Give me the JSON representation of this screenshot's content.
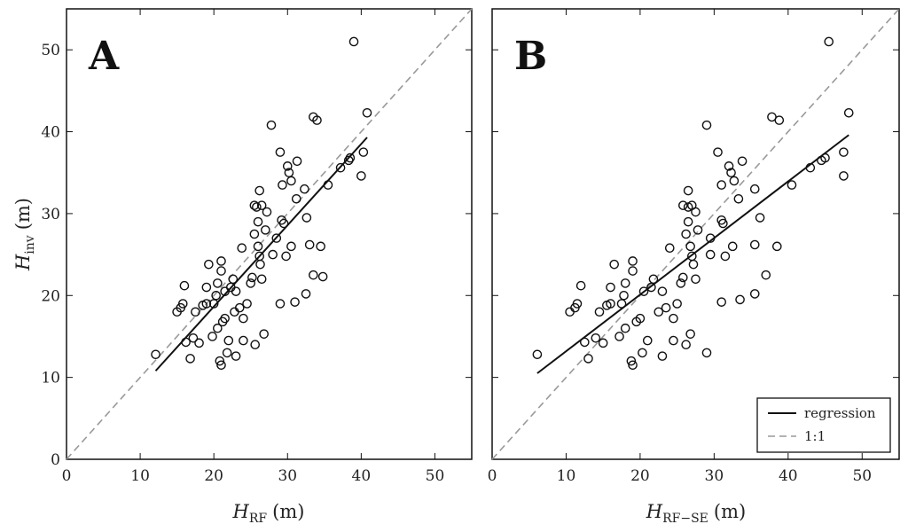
{
  "chart_data": [
    {
      "type": "scatter",
      "panel_label": "A",
      "ylabel": {
        "main": "H",
        "sub": "inv",
        "unit": "(m)"
      },
      "xlabel": {
        "main": "H",
        "sub": "RF",
        "unit": "(m)"
      },
      "xlim": [
        0,
        55
      ],
      "ylim": [
        0,
        55
      ],
      "xticks": [
        0,
        10,
        20,
        30,
        40,
        50
      ],
      "yticks": [
        0,
        10,
        20,
        30,
        40,
        50
      ],
      "grid": false,
      "series": [
        {
          "name": "observations",
          "points": [
            [
              12.1,
              12.8
            ],
            [
              15.0,
              18.0
            ],
            [
              15.5,
              18.5
            ],
            [
              15.8,
              19.0
            ],
            [
              16.0,
              21.2
            ],
            [
              16.2,
              14.3
            ],
            [
              16.8,
              12.3
            ],
            [
              17.2,
              14.8
            ],
            [
              17.5,
              18.0
            ],
            [
              18.0,
              14.2
            ],
            [
              18.5,
              18.8
            ],
            [
              19.0,
              19.0
            ],
            [
              19.0,
              21.0
            ],
            [
              19.3,
              23.8
            ],
            [
              19.8,
              15.0
            ],
            [
              20.0,
              19.0
            ],
            [
              20.3,
              20.0
            ],
            [
              20.5,
              16.0
            ],
            [
              20.5,
              21.5
            ],
            [
              20.8,
              12.0
            ],
            [
              21.0,
              11.5
            ],
            [
              21.0,
              24.2
            ],
            [
              21.0,
              23.0
            ],
            [
              21.2,
              16.8
            ],
            [
              21.5,
              17.2
            ],
            [
              21.8,
              13.0
            ],
            [
              21.5,
              20.5
            ],
            [
              22.0,
              14.5
            ],
            [
              22.3,
              21.0
            ],
            [
              22.6,
              22.0
            ],
            [
              22.8,
              18.0
            ],
            [
              23.0,
              12.6
            ],
            [
              23.0,
              20.5
            ],
            [
              23.5,
              18.5
            ],
            [
              23.8,
              25.8
            ],
            [
              24.0,
              14.5
            ],
            [
              24.0,
              17.2
            ],
            [
              24.5,
              19.0
            ],
            [
              25.0,
              21.5
            ],
            [
              25.2,
              22.2
            ],
            [
              25.5,
              31.0
            ],
            [
              25.5,
              27.5
            ],
            [
              25.6,
              14.0
            ],
            [
              25.8,
              30.8
            ],
            [
              26.0,
              29.0
            ],
            [
              26.0,
              26.0
            ],
            [
              26.2,
              24.8
            ],
            [
              26.2,
              32.8
            ],
            [
              26.3,
              23.8
            ],
            [
              26.5,
              31.0
            ],
            [
              26.5,
              22.0
            ],
            [
              26.8,
              15.3
            ],
            [
              27.0,
              28.0
            ],
            [
              27.2,
              30.2
            ],
            [
              27.8,
              40.8
            ],
            [
              28.0,
              25.0
            ],
            [
              28.5,
              27.0
            ],
            [
              29.0,
              37.5
            ],
            [
              29.0,
              19.0
            ],
            [
              29.2,
              29.2
            ],
            [
              29.3,
              33.5
            ],
            [
              29.5,
              28.8
            ],
            [
              29.8,
              24.8
            ],
            [
              30.0,
              35.8
            ],
            [
              30.2,
              35.0
            ],
            [
              30.5,
              34.0
            ],
            [
              30.5,
              26.0
            ],
            [
              31.0,
              19.2
            ],
            [
              31.2,
              31.8
            ],
            [
              31.3,
              36.4
            ],
            [
              32.3,
              33.0
            ],
            [
              32.5,
              20.2
            ],
            [
              32.6,
              29.5
            ],
            [
              33.0,
              26.2
            ],
            [
              33.5,
              41.8
            ],
            [
              33.5,
              22.5
            ],
            [
              34.0,
              41.4
            ],
            [
              34.5,
              26.0
            ],
            [
              34.8,
              22.3
            ],
            [
              35.5,
              33.5
            ],
            [
              37.2,
              35.6
            ],
            [
              38.3,
              36.5
            ],
            [
              38.5,
              36.8
            ],
            [
              39.0,
              51.0
            ],
            [
              40.0,
              34.6
            ],
            [
              40.3,
              37.5
            ],
            [
              40.8,
              42.3
            ]
          ]
        },
        {
          "name": "regression",
          "x": [
            12.1,
            40.8
          ],
          "y": [
            10.8,
            39.3
          ]
        },
        {
          "name": "1:1",
          "x": [
            0,
            55
          ],
          "y": [
            0,
            55
          ]
        }
      ],
      "legend": null
    },
    {
      "type": "scatter",
      "panel_label": "B",
      "ylabel": null,
      "xlabel": {
        "main": "H",
        "sub": "RF−SE",
        "unit": "(m)"
      },
      "xlim": [
        0,
        55
      ],
      "ylim": [
        0,
        55
      ],
      "xticks": [
        0,
        10,
        20,
        30,
        40,
        50
      ],
      "yticks": [
        0,
        10,
        20,
        30,
        40,
        50
      ],
      "grid": false,
      "series": [
        {
          "name": "observations",
          "points": [
            [
              6.1,
              12.8
            ],
            [
              10.5,
              18.0
            ],
            [
              11.2,
              18.5
            ],
            [
              11.5,
              19.0
            ],
            [
              12.0,
              21.2
            ],
            [
              12.5,
              14.3
            ],
            [
              13.0,
              12.3
            ],
            [
              14.0,
              14.8
            ],
            [
              14.5,
              18.0
            ],
            [
              15.0,
              14.2
            ],
            [
              15.5,
              18.8
            ],
            [
              16.0,
              19.0
            ],
            [
              16.0,
              21.0
            ],
            [
              16.5,
              23.8
            ],
            [
              17.2,
              15.0
            ],
            [
              17.5,
              19.0
            ],
            [
              17.8,
              20.0
            ],
            [
              18.0,
              16.0
            ],
            [
              18.0,
              21.5
            ],
            [
              18.8,
              12.0
            ],
            [
              19.0,
              11.5
            ],
            [
              19.0,
              24.2
            ],
            [
              19.0,
              23.0
            ],
            [
              19.5,
              16.8
            ],
            [
              20.0,
              17.2
            ],
            [
              20.3,
              13.0
            ],
            [
              20.5,
              20.5
            ],
            [
              21.0,
              14.5
            ],
            [
              21.5,
              21.0
            ],
            [
              21.8,
              22.0
            ],
            [
              22.5,
              18.0
            ],
            [
              23.0,
              12.6
            ],
            [
              23.0,
              20.5
            ],
            [
              23.5,
              18.5
            ],
            [
              24.0,
              25.8
            ],
            [
              24.5,
              14.5
            ],
            [
              24.5,
              17.2
            ],
            [
              25.0,
              19.0
            ],
            [
              25.5,
              21.5
            ],
            [
              25.8,
              22.2
            ],
            [
              25.8,
              31.0
            ],
            [
              26.2,
              27.5
            ],
            [
              26.2,
              14.0
            ],
            [
              26.5,
              30.8
            ],
            [
              26.5,
              29.0
            ],
            [
              26.8,
              26.0
            ],
            [
              27.0,
              24.8
            ],
            [
              26.5,
              32.8
            ],
            [
              27.2,
              23.8
            ],
            [
              27.0,
              31.0
            ],
            [
              27.5,
              22.0
            ],
            [
              26.8,
              15.3
            ],
            [
              27.8,
              28.0
            ],
            [
              27.5,
              30.2
            ],
            [
              29.0,
              40.8
            ],
            [
              29.5,
              25.0
            ],
            [
              29.5,
              27.0
            ],
            [
              30.5,
              37.5
            ],
            [
              29.0,
              13.0
            ],
            [
              31.0,
              29.2
            ],
            [
              31.0,
              33.5
            ],
            [
              31.2,
              28.8
            ],
            [
              31.5,
              24.8
            ],
            [
              32.0,
              35.8
            ],
            [
              32.3,
              35.0
            ],
            [
              32.7,
              34.0
            ],
            [
              32.5,
              26.0
            ],
            [
              31.0,
              19.2
            ],
            [
              33.3,
              31.8
            ],
            [
              33.8,
              36.4
            ],
            [
              35.5,
              33.0
            ],
            [
              35.5,
              20.2
            ],
            [
              36.2,
              29.5
            ],
            [
              35.5,
              26.2
            ],
            [
              37.8,
              41.8
            ],
            [
              37.0,
              22.5
            ],
            [
              38.8,
              41.4
            ],
            [
              38.5,
              26.0
            ],
            [
              33.5,
              19.5
            ],
            [
              40.5,
              33.5
            ],
            [
              43.0,
              35.6
            ],
            [
              44.5,
              36.5
            ],
            [
              45.0,
              36.8
            ],
            [
              45.5,
              51.0
            ],
            [
              47.5,
              34.6
            ],
            [
              47.5,
              37.5
            ],
            [
              48.2,
              42.3
            ]
          ]
        },
        {
          "name": "regression",
          "x": [
            6.1,
            48.2
          ],
          "y": [
            10.5,
            39.6
          ]
        },
        {
          "name": "1:1",
          "x": [
            0,
            55
          ],
          "y": [
            0,
            55
          ]
        }
      ],
      "legend": {
        "position": "bottom-right",
        "entries": [
          {
            "label": "regression",
            "style": "solid"
          },
          {
            "label": "1:1",
            "style": "dashed"
          }
        ]
      }
    }
  ]
}
